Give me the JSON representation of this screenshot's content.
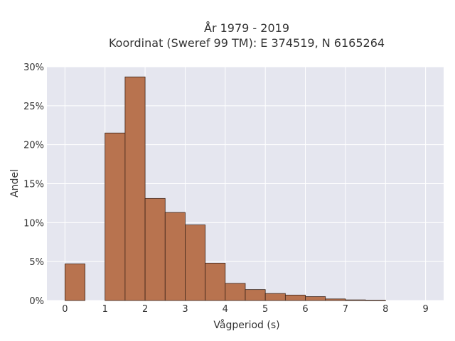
{
  "chart_data": {
    "type": "bar",
    "title": "År 1979 - 2019",
    "subtitle": "Koordinat (Sweref 99 TM): E 374519, N 6165264",
    "xlabel": "Vågperiod (s)",
    "ylabel": "Andel",
    "xlim": [
      -0.45,
      9.45
    ],
    "ylim": [
      0,
      30
    ],
    "x_ticks": [
      0,
      1,
      2,
      3,
      4,
      5,
      6,
      7,
      8,
      9
    ],
    "x_tick_labels": [
      "0",
      "1",
      "2",
      "3",
      "4",
      "5",
      "6",
      "7",
      "8",
      "9"
    ],
    "y_ticks": [
      0,
      5,
      10,
      15,
      20,
      25,
      30
    ],
    "y_tick_labels": [
      "0%",
      "5%",
      "10%",
      "15%",
      "20%",
      "25%",
      "30%"
    ],
    "grid": true,
    "bin_width": 0.5,
    "bins": [
      {
        "start": 0.0,
        "value": 4.7
      },
      {
        "start": 1.0,
        "value": 21.5
      },
      {
        "start": 1.5,
        "value": 28.7
      },
      {
        "start": 2.0,
        "value": 13.1
      },
      {
        "start": 2.5,
        "value": 11.3
      },
      {
        "start": 3.0,
        "value": 9.7
      },
      {
        "start": 3.5,
        "value": 4.8
      },
      {
        "start": 4.0,
        "value": 2.2
      },
      {
        "start": 4.5,
        "value": 1.4
      },
      {
        "start": 5.0,
        "value": 0.9
      },
      {
        "start": 5.5,
        "value": 0.7
      },
      {
        "start": 6.0,
        "value": 0.5
      },
      {
        "start": 6.5,
        "value": 0.2
      },
      {
        "start": 7.0,
        "value": 0.08
      },
      {
        "start": 7.5,
        "value": 0.05
      }
    ],
    "colors": {
      "bar_fill": "#b8734f",
      "bar_stroke": "#3d2418",
      "plot_bg": "#e5e6ef",
      "grid": "#ffffff"
    }
  }
}
